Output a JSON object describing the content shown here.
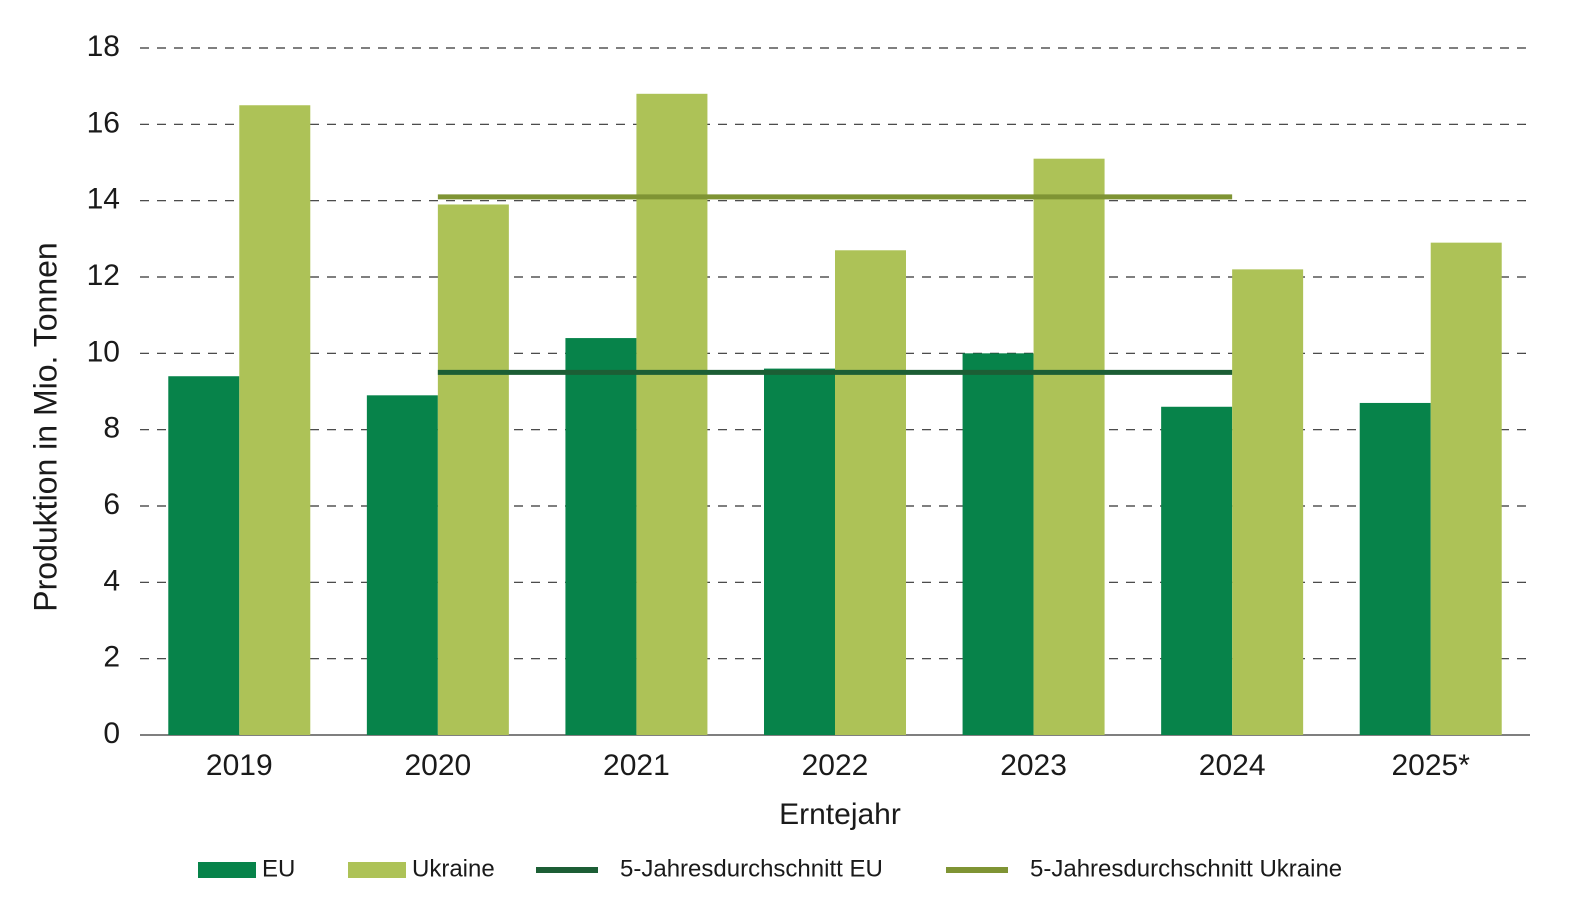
{
  "chart_data": {
    "type": "bar",
    "x_label": "Erntejahr",
    "y_label": "Produktion in Mio. Tonnen",
    "categories": [
      "2019",
      "2020",
      "2021",
      "2022",
      "2023",
      "2024",
      "2025*"
    ],
    "series": [
      {
        "name": "EU",
        "color": "#07834a",
        "type": "bar",
        "values": [
          9.4,
          8.9,
          10.4,
          9.6,
          10.0,
          8.6,
          8.7
        ]
      },
      {
        "name": "Ukraine",
        "color": "#adc257",
        "type": "bar",
        "values": [
          16.5,
          13.9,
          16.8,
          12.7,
          15.1,
          12.2,
          12.9
        ]
      },
      {
        "name": "5-Jahresdurchschnitt EU",
        "color": "#1c5e35",
        "type": "line",
        "values": [
          null,
          9.5,
          9.5,
          9.5,
          9.5,
          9.5,
          null
        ]
      },
      {
        "name": "5-Jahresdurchschnitt Ukraine",
        "color": "#7f9434",
        "type": "line",
        "values": [
          null,
          14.1,
          14.1,
          14.1,
          14.1,
          14.1,
          null
        ]
      }
    ],
    "ylim": [
      0,
      18
    ],
    "yticks": [
      0,
      2,
      4,
      6,
      8,
      10,
      12,
      14,
      16,
      18
    ],
    "grid": true,
    "legend": "bottom"
  }
}
